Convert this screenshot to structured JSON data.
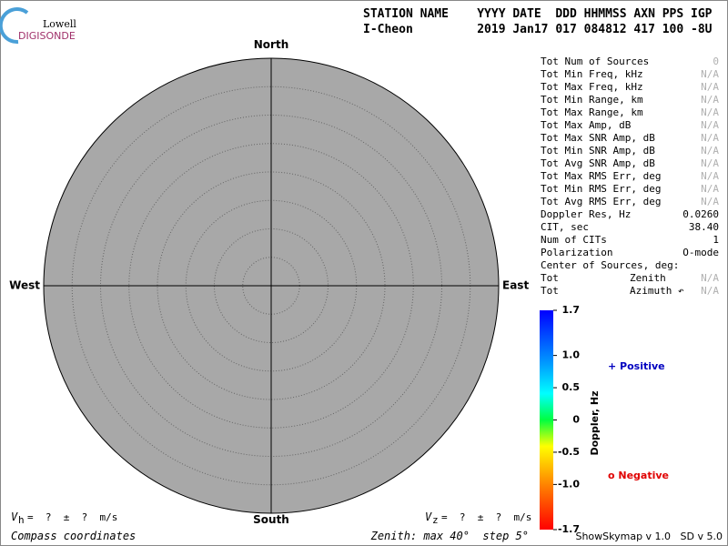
{
  "chart_data": {
    "type": "skymap",
    "logo": {
      "line1": "Lowell",
      "line2": "DIGISONDE"
    },
    "header": {
      "columns": "STATION NAME    YYYY DATE  DDD HHMMSS AXN PPS IGP",
      "values": "I-Cheon         2019 Jan17 017 084812 417 100 -8U"
    },
    "directions": {
      "north": "North",
      "south": "South",
      "east": "East",
      "west": "West"
    },
    "stats": [
      [
        "Tot Num of Sources",
        "0"
      ],
      [
        "Tot Min Freq, kHz",
        "N/A"
      ],
      [
        "Tot Max Freq, kHz",
        "N/A"
      ],
      [
        "Tot Min Range, km",
        "N/A"
      ],
      [
        "Tot Max Range, km",
        "N/A"
      ],
      [
        "Tot Max Amp, dB",
        "N/A"
      ],
      [
        "Tot Max SNR Amp, dB",
        "N/A"
      ],
      [
        "Tot Min SNR Amp, dB",
        "N/A"
      ],
      [
        "Tot Avg SNR Amp, dB",
        "N/A"
      ],
      [
        "Tot Max RMS Err, deg",
        "N/A"
      ],
      [
        "Tot Min RMS Err, deg",
        "N/A"
      ],
      [
        "Tot Avg RMS Err, deg",
        "N/A"
      ],
      [
        "Doppler Res, Hz",
        "0.0260"
      ],
      [
        "CIT, sec",
        "38.40"
      ],
      [
        "Num of CITs",
        "1"
      ],
      [
        "Polarization",
        "O-mode"
      ],
      [
        "Center of Sources, deg:"
      ],
      [
        "Tot",
        "Zenith",
        "N/A"
      ],
      [
        "Tot",
        "Azimuth ↶",
        "N/A"
      ]
    ],
    "colorbar": {
      "label": "Doppler, Hz",
      "ylim": [
        -1.7,
        1.7
      ],
      "yticks": [
        1.7,
        {
          "value": 1,
          "label": "1.0"
        },
        0.5,
        0,
        -0.5,
        {
          "value": -1,
          "label": "-1.0"
        },
        -1.7
      ]
    },
    "legend": {
      "positive": "+ Positive",
      "negative": "o Negative"
    },
    "vh": {
      "symbol": "V",
      "sub": "h",
      "text": "=  ?  ±  ?  m/s"
    },
    "vz": {
      "symbol": "V",
      "sub": "z",
      "text": "=  ?  ±  ?  m/s"
    },
    "footer_left": "Compass coordinates",
    "footer_mid": "Zenith: max 40°  step 5°",
    "footer_right": "ShowSkymap v 1.0   SD v 5.0"
  }
}
